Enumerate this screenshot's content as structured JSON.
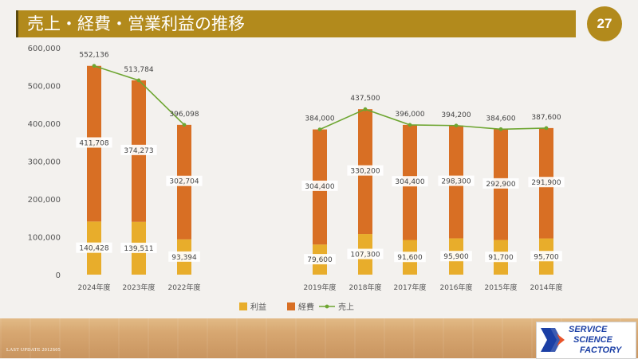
{
  "slide": {
    "title": "売上・経費・営業利益の推移",
    "page_number": "27",
    "last_update": "LAST UPDATE 2012S05",
    "logo_lines": [
      "SERVICE",
      "SCIENCE",
      "FACTORY"
    ]
  },
  "colors": {
    "title_bar": "#b28a1c",
    "profit": "#e8ad2b",
    "expense": "#d86f24",
    "sales": "#6ea632"
  },
  "chart_data": {
    "type": "bar",
    "stacked": true,
    "categories": [
      "2024年度",
      "2023年度",
      "2022年度",
      "2019年度",
      "2018年度",
      "2017年度",
      "2016年度",
      "2015年度",
      "2014年度"
    ],
    "series": [
      {
        "name": "利益",
        "kind": "bar",
        "values": [
          140428,
          139511,
          93394,
          79600,
          107300,
          91600,
          95900,
          91700,
          95700
        ]
      },
      {
        "name": "経費",
        "kind": "bar",
        "values": [
          411708,
          374273,
          302704,
          304400,
          330200,
          304400,
          298300,
          292900,
          291900
        ]
      },
      {
        "name": "売上",
        "kind": "line",
        "values": [
          552136,
          513784,
          396098,
          384000,
          437500,
          396000,
          394200,
          384600,
          387600
        ]
      }
    ],
    "profit_labels": [
      "140,428",
      "139,511",
      "93,394",
      "79,600",
      "107,300",
      "91,600",
      "95,900",
      "91,700",
      "95,700"
    ],
    "expense_labels": [
      "411,708",
      "374,273",
      "302,704",
      "304,400",
      "330,200",
      "304,400",
      "298,300",
      "292,900",
      "291,900"
    ],
    "sales_labels": [
      "552,136",
      "513,784",
      "396,098",
      "384,000",
      "437,500",
      "396,000",
      "394,200",
      "384,600",
      "387,600"
    ],
    "y_ticks": [
      "0",
      "100,000",
      "200,000",
      "300,000",
      "400,000",
      "500,000",
      "600,000"
    ],
    "ylim": [
      0,
      600000
    ],
    "legend": {
      "position": "bottom",
      "items": [
        "利益",
        "経費",
        "売上"
      ]
    },
    "grid": false
  }
}
